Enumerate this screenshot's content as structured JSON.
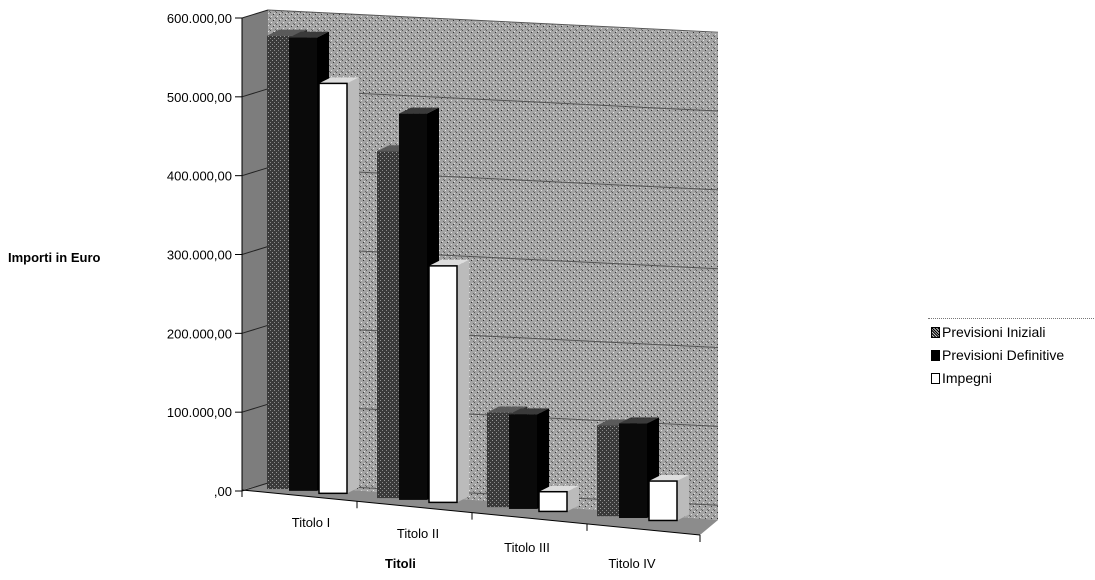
{
  "chart_data": {
    "type": "bar",
    "title": "",
    "xlabel": "Titoli",
    "ylabel": "Importi in Euro",
    "categories": [
      "Titolo I",
      "Titolo II",
      "Titolo III",
      "Titolo IV"
    ],
    "ylim": [
      0,
      600000
    ],
    "yticks": [
      "600.000,00",
      "500.000,00",
      "400.000,00",
      "300.000,00",
      "200.000,00",
      "100.000,00",
      ",00"
    ],
    "series": [
      {
        "name": "Previsioni Iniziali",
        "values": [
          575000,
          440000,
          120000,
          115000
        ]
      },
      {
        "name": "Previsioni Definitive",
        "values": [
          575000,
          490000,
          120000,
          120000
        ]
      },
      {
        "name": "Impegni",
        "values": [
          520000,
          300000,
          25000,
          50000
        ]
      }
    ],
    "legend_position": "right",
    "three_d": true,
    "colors": {
      "initial": "#6e6e6e",
      "final": "#000000",
      "commit": "#ffffff",
      "wall": "#9c9c9c",
      "floor": "#8a8a8a"
    }
  }
}
